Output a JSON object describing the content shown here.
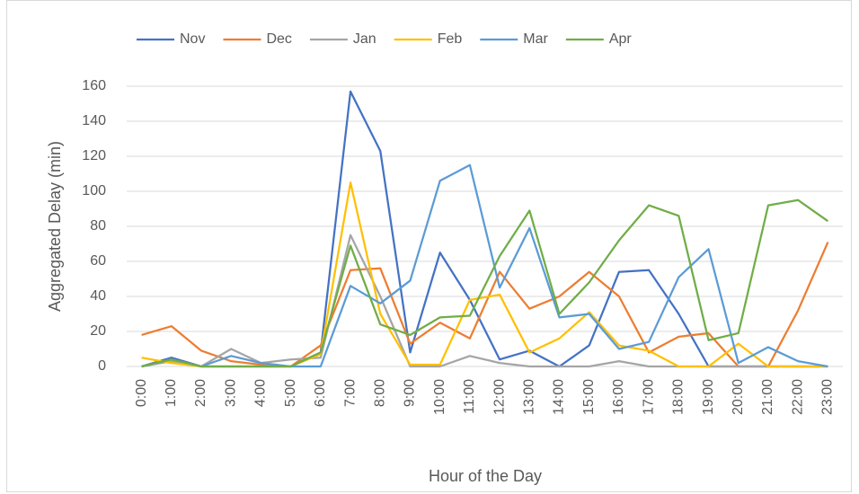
{
  "chart_data": {
    "type": "line",
    "x_label": "Hour of the Day",
    "y_label": "Aggregated Delay (min)",
    "categories": [
      "0:00",
      "1:00",
      "2:00",
      "3:00",
      "4:00",
      "5:00",
      "6:00",
      "7:00",
      "8:00",
      "9:00",
      "10:00",
      "11:00",
      "12:00",
      "13:00",
      "14:00",
      "15:00",
      "16:00",
      "17:00",
      "18:00",
      "19:00",
      "20:00",
      "21:00",
      "22:00",
      "23:00"
    ],
    "series": [
      {
        "name": "Nov",
        "color": "#4472c4",
        "values": [
          0,
          5,
          0,
          0,
          0,
          0,
          8,
          157,
          123,
          8,
          65,
          38,
          4,
          9,
          0,
          12,
          54,
          55,
          30,
          0,
          0,
          0,
          0,
          0
        ]
      },
      {
        "name": "Dec",
        "color": "#ed7d31",
        "values": [
          18,
          23,
          9,
          3,
          1,
          0,
          12,
          55,
          56,
          13,
          25,
          16,
          54,
          33,
          40,
          54,
          40,
          8,
          17,
          19,
          0,
          0,
          32,
          71
        ]
      },
      {
        "name": "Jan",
        "color": "#a5a5a5",
        "values": [
          0,
          3,
          0,
          10,
          2,
          4,
          5,
          75,
          40,
          0,
          0,
          6,
          2,
          0,
          0,
          0,
          3,
          0,
          0,
          0,
          0,
          0,
          0,
          0
        ]
      },
      {
        "name": "Feb",
        "color": "#ffc000",
        "values": [
          5,
          2,
          0,
          0,
          0,
          0,
          7,
          105,
          30,
          1,
          1,
          38,
          41,
          8,
          16,
          31,
          12,
          9,
          0,
          0,
          13,
          0,
          0,
          0
        ]
      },
      {
        "name": "Mar",
        "color": "#5b9bd5",
        "values": [
          0,
          4,
          0,
          6,
          2,
          0,
          0,
          46,
          36,
          49,
          106,
          115,
          45,
          79,
          28,
          30,
          10,
          14,
          51,
          67,
          2,
          11,
          3,
          0
        ]
      },
      {
        "name": "Apr",
        "color": "#70ad47",
        "values": [
          0,
          4,
          0,
          0,
          0,
          0,
          8,
          69,
          24,
          18,
          28,
          29,
          63,
          89,
          30,
          48,
          72,
          92,
          86,
          15,
          19,
          92,
          95,
          83
        ]
      }
    ],
    "ylim": [
      0,
      160
    ],
    "yticks": [
      0,
      20,
      40,
      60,
      80,
      100,
      120,
      140,
      160
    ],
    "grid": true,
    "legend": "top"
  }
}
